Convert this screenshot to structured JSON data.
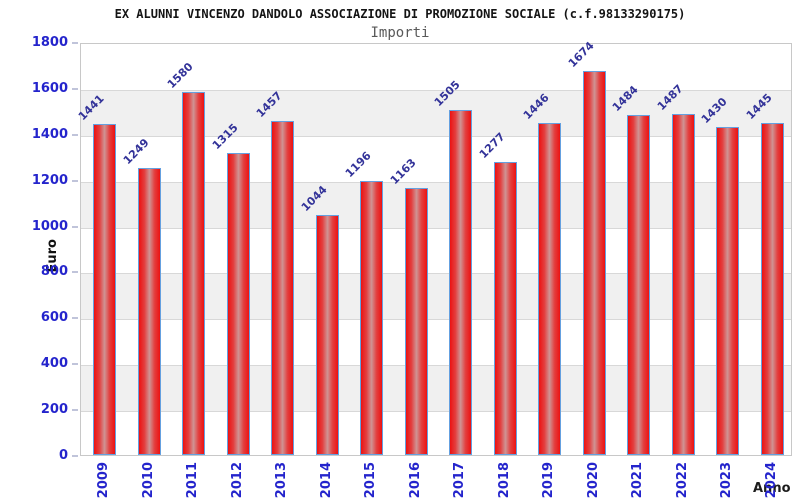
{
  "chart_data": {
    "type": "bar",
    "title": "EX ALUNNI VINCENZO DANDOLO ASSOCIAZIONE DI PROMOZIONE SOCIALE (c.f.98133290175)",
    "subtitle": "Importi",
    "xlabel": "Anno",
    "ylabel": "Euro",
    "categories": [
      "2009",
      "2010",
      "2011",
      "2012",
      "2013",
      "2014",
      "2015",
      "2016",
      "2017",
      "2018",
      "2019",
      "2020",
      "2021",
      "2022",
      "2023",
      "2024"
    ],
    "values": [
      1441,
      1249,
      1580,
      1315,
      1457,
      1044,
      1196,
      1163,
      1505,
      1277,
      1446,
      1674,
      1484,
      1487,
      1430,
      1445
    ],
    "ylim": [
      0,
      1800
    ],
    "ytick_step": 200,
    "grid": true,
    "legend": "none",
    "band_fill_alternating": true,
    "colors": {
      "bar_red": "#ec1212",
      "bar_red_mid": "#e33f3f",
      "bar_highlight": "#cf9494",
      "bar_border": "#64a0e0",
      "value_label": "#333399",
      "tick_label": "#2424cc",
      "band_gray": "#f0f0f0",
      "gridline": "#d8d8d8",
      "plot_border": "#c8c8c8",
      "title": "#141414",
      "subtitle": "#595959",
      "axis_label": "#111111"
    }
  }
}
